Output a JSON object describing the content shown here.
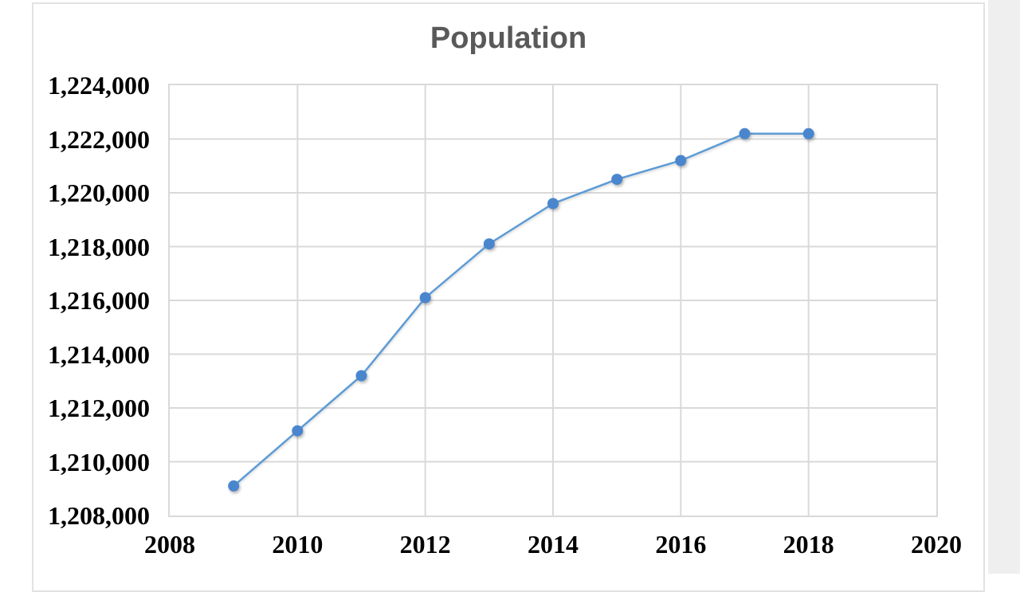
{
  "chart_data": {
    "type": "line",
    "title": "Population",
    "xlabel": "",
    "ylabel": "",
    "x": [
      2009,
      2010,
      2011,
      2012,
      2013,
      2014,
      2015,
      2016,
      2017,
      2018
    ],
    "series": [
      {
        "name": "Population",
        "values": [
          1209100,
          1211150,
          1213200,
          1216100,
          1218100,
          1219600,
          1220500,
          1221200,
          1222200,
          1222200
        ]
      }
    ],
    "x_axis": {
      "min": 2008,
      "max": 2020,
      "tick_step": 2,
      "tick_labels": [
        "2008",
        "2010",
        "2012",
        "2014",
        "2016",
        "2018",
        "2020"
      ]
    },
    "y_axis": {
      "min": 1208000,
      "max": 1224000,
      "tick_step": 2000,
      "tick_labels": [
        "1,208,000",
        "1,210,000",
        "1,212,000",
        "1,214,000",
        "1,216,000",
        "1,218,000",
        "1,220,000",
        "1,222,000",
        "1,224,000"
      ]
    },
    "grid": true,
    "legend_position": "none",
    "colors": {
      "line": "#5b9bd5",
      "marker": "#4a86cd",
      "title_text": "#595959",
      "axis_text": "#000000",
      "gridline": "#d9d9d9",
      "plot_border": "#d9d9d9"
    }
  }
}
